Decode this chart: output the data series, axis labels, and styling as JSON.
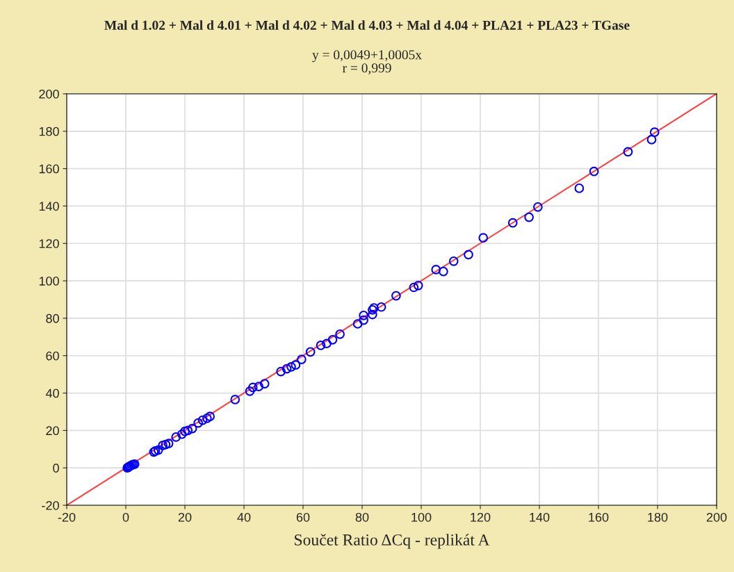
{
  "chart_data": {
    "type": "scatter",
    "title": "Mal d 1.02 + Mal d 4.01 + Mal d 4.02 + Mal d 4.03 + Mal d 4.04 + PLA21 + PLA23 + TGase",
    "subtitle": "y = 0,0049+1,0005x\nr = 0,999",
    "xlabel": "Součet Ratio ΔCq - replikát A",
    "xlim": [
      -20,
      200
    ],
    "ylim": [
      -20,
      200
    ],
    "xticks": [
      -20,
      0,
      20,
      40,
      60,
      80,
      100,
      120,
      140,
      160,
      180,
      200
    ],
    "yticks": [
      -20,
      0,
      20,
      40,
      60,
      80,
      100,
      120,
      140,
      160,
      180,
      200
    ],
    "grid": true,
    "marker": "circle",
    "series": [
      {
        "color": "#0000ff",
        "x": [
          0.5,
          0.8,
          1,
          1.2,
          1.5,
          2,
          2.5,
          3,
          9.5,
          10,
          11,
          12.5,
          13.5,
          14.5,
          17,
          19,
          20,
          21,
          22.5,
          24.5,
          26,
          27.5,
          28.5,
          37,
          42,
          43,
          45,
          47,
          52.5,
          54.5,
          56,
          57.5,
          59.5,
          62.5,
          66,
          68,
          70,
          72.5,
          78.5,
          80.5,
          80.5,
          83.5,
          83.5,
          84,
          86.5,
          91.5,
          97.5,
          99,
          105,
          107.5,
          111,
          116,
          121,
          131,
          136.5,
          139.5,
          153.5,
          158.5,
          170,
          178,
          179
        ],
        "values": [
          0,
          0.3,
          0.5,
          0.8,
          1,
          1.5,
          1.8,
          2,
          8.5,
          9,
          9.5,
          12,
          12.5,
          13,
          16.5,
          18,
          19.5,
          20,
          21,
          24,
          25.5,
          26.5,
          27.5,
          36.5,
          41,
          43,
          43.5,
          45,
          51.5,
          53,
          54,
          55,
          58,
          62,
          65.5,
          66.5,
          68.5,
          71.5,
          77,
          79,
          81.5,
          82,
          84.5,
          85.5,
          86,
          92,
          96.5,
          97.5,
          106,
          105,
          110.5,
          114,
          123,
          131,
          134,
          139.5,
          149.5,
          158.5,
          169,
          175.5,
          179.5
        ]
      },
      {
        "type": "line",
        "color": "#ff4040",
        "marker": "none",
        "x": [
          -19.9,
          199.8
        ],
        "values": [
          -19.9,
          199.9
        ]
      }
    ]
  }
}
